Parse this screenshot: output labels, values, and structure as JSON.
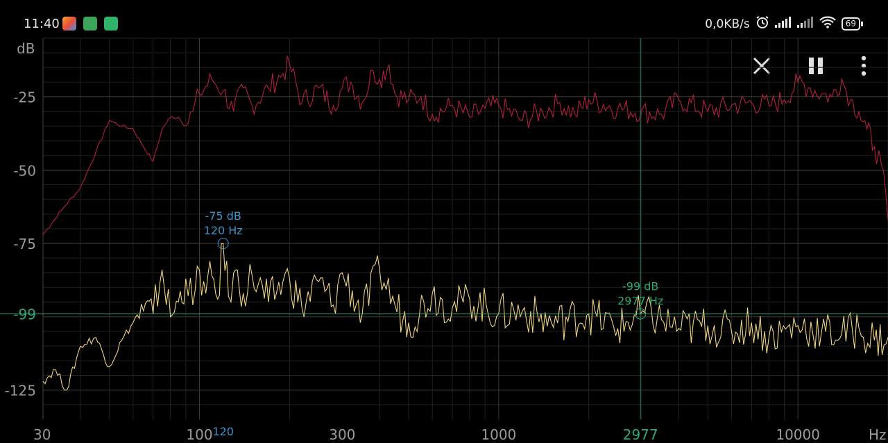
{
  "status_bar": {
    "time": "11:40",
    "net_speed": "0,0KB/s",
    "battery": "69",
    "notification_icons": [
      "photos-icon",
      "battery-saver-icon",
      "phone-call-icon"
    ],
    "indicator_icons": [
      "alarm-icon",
      "signal-icon",
      "signal-icon-2",
      "wifi-icon"
    ]
  },
  "toolbar": {
    "close_icon": "close-icon",
    "pause_icon": "pause-icon",
    "menu_icon": "more-vert-icon"
  },
  "chart_data": {
    "type": "line",
    "ylabel": "dB",
    "xlabel": "Hz",
    "x_scale": "log",
    "xlim": [
      30,
      20000
    ],
    "ylim": [
      -135,
      -5
    ],
    "y_ticks": [
      -25,
      -50,
      -75,
      -125
    ],
    "x_ticks": [
      30,
      100,
      300,
      1000,
      10000
    ],
    "grid": true,
    "series": [
      {
        "color": "#b3203b",
        "x": [
          30,
          35,
          40,
          45,
          50,
          55,
          60,
          65,
          70,
          75,
          80,
          85,
          90,
          95,
          100,
          110,
          120,
          130,
          140,
          150,
          170,
          190,
          200,
          220,
          250,
          280,
          300,
          320,
          350,
          380,
          400,
          430,
          450,
          500,
          550,
          600,
          700,
          800,
          900,
          1000,
          1200,
          1400,
          1600,
          1800,
          2000,
          2500,
          3000,
          3500,
          4000,
          5000,
          6000,
          7000,
          8000,
          9000,
          10000,
          11000,
          12000,
          13000,
          14000,
          15000,
          16000,
          17000,
          18000,
          19000,
          20000
        ],
        "y": [
          -72,
          -63,
          -56,
          -44,
          -33,
          -35,
          -36,
          -42,
          -47,
          -36,
          -32,
          -32,
          -35,
          -30,
          -24,
          -19,
          -23,
          -30,
          -22,
          -28,
          -22,
          -17,
          -14,
          -27,
          -22,
          -28,
          -22,
          -20,
          -27,
          -16,
          -19,
          -14,
          -24,
          -26,
          -25,
          -31,
          -28,
          -32,
          -29,
          -28,
          -33,
          -30,
          -27,
          -31,
          -26,
          -29,
          -30,
          -31,
          -26,
          -30,
          -28,
          -27,
          -28,
          -26,
          -20,
          -22,
          -24,
          -25,
          -19,
          -26,
          -30,
          -36,
          -42,
          -48,
          -67
        ]
      },
      {
        "color": "#f0d480",
        "x": [
          30,
          33,
          36,
          40,
          45,
          50,
          55,
          60,
          65,
          70,
          75,
          80,
          85,
          90,
          95,
          100,
          105,
          110,
          115,
          120,
          125,
          130,
          140,
          150,
          170,
          190,
          200,
          220,
          250,
          280,
          300,
          350,
          400,
          450,
          500,
          600,
          700,
          800,
          1000,
          1200,
          1500,
          2000,
          2500,
          2977,
          3500,
          4000,
          5000,
          6000,
          7000,
          8000,
          10000,
          12000,
          14000,
          16000,
          18000,
          20000
        ],
        "y": [
          -122,
          -118,
          -125,
          -110,
          -107,
          -117,
          -108,
          -102,
          -98,
          -99,
          -84,
          -100,
          -95,
          -87,
          -96,
          -84,
          -92,
          -86,
          -94,
          -75,
          -93,
          -85,
          -92,
          -86,
          -95,
          -88,
          -87,
          -97,
          -88,
          -96,
          -85,
          -99,
          -84,
          -96,
          -102,
          -92,
          -97,
          -94,
          -99,
          -98,
          -102,
          -99,
          -104,
          -99,
          -101,
          -104,
          -103,
          -105,
          -102,
          -107,
          -103,
          -105,
          -106,
          -104,
          -108,
          -107
        ]
      }
    ],
    "markers": [
      {
        "db_label": "-75 dB",
        "hz_label": "120 Hz",
        "x": 120,
        "y": -75,
        "color": "#3d95cc",
        "axis_label": "120"
      },
      {
        "db_label": "-99 dB",
        "hz_label": "2977 Hz",
        "x": 2977,
        "y": -99,
        "color": "#2fa874",
        "axis_label": "2977",
        "y_axis_label": "-99"
      }
    ]
  }
}
